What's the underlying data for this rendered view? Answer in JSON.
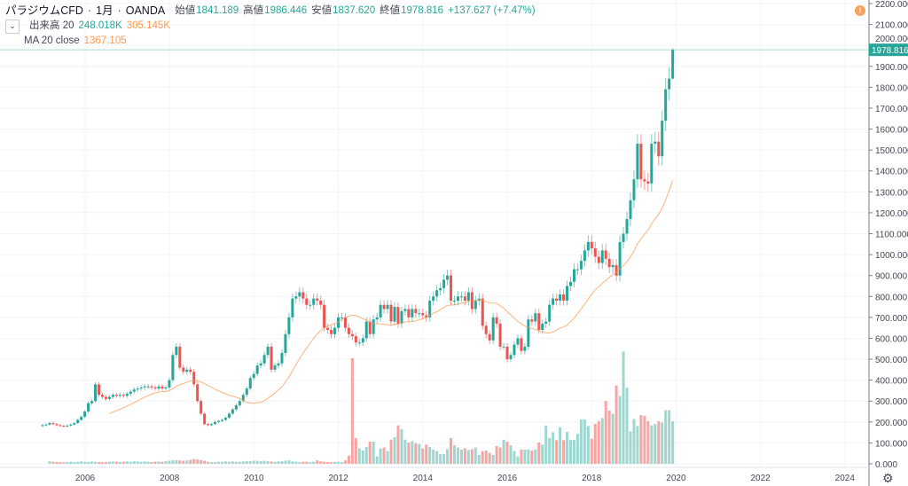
{
  "legend": {
    "symbol": "パラジウムCFD",
    "interval": "1月",
    "exchange": "OANDA",
    "open_label": "始値",
    "open": "1841.189",
    "high_label": "高値",
    "high": "1986.446",
    "low_label": "安値",
    "low": "1837.620",
    "close_label": "終値",
    "close": "1978.816",
    "change": "+137.627 (+7.47%)",
    "volume_label": "出来高 20",
    "volume_value": "248.018K",
    "volume_ma": "305.145K",
    "ma_label": "MA 20 close",
    "ma_value": "1367.105"
  },
  "price_label": "1978.816",
  "alert_icon": "!",
  "colors": {
    "up": "#26a69a",
    "down": "#ef5350",
    "ma": "#ff9850",
    "volume_up": "#9fd6d0",
    "volume_down": "#f5a6a4"
  },
  "chart_data": {
    "type": "candlestick",
    "start": "2005-01",
    "interval": "1M",
    "ylim": [
      0,
      2200
    ],
    "y_ticks": [
      "0.000",
      "100.000",
      "200.000",
      "300.000",
      "400.000",
      "500.000",
      "600.000",
      "700.000",
      "800.000",
      "900.000",
      "1000.000",
      "1100.000",
      "1200.000",
      "1300.000",
      "1400.000",
      "1500.000",
      "1600.000",
      "1700.000",
      "1800.000",
      "1900.000",
      "2000.000",
      "2100.000",
      "2200.000"
    ],
    "x_ticks": [
      "2006",
      "2008",
      "2010",
      "2012",
      "2014",
      "2016",
      "2018",
      "2020",
      "2022",
      "2024"
    ],
    "ma_period": 20,
    "last_bar": {
      "open": 1841.189,
      "high": 1986.446,
      "low": 1837.62,
      "close": 1978.816
    },
    "close": [
      185,
      188,
      195,
      190,
      185,
      182,
      180,
      183,
      188,
      195,
      210,
      225,
      250,
      290,
      300,
      380,
      330,
      320,
      310,
      320,
      330,
      325,
      330,
      325,
      335,
      345,
      355,
      360,
      365,
      370,
      370,
      365,
      360,
      370,
      360,
      365,
      400,
      520,
      560,
      460,
      440,
      450,
      440,
      380,
      300,
      240,
      190,
      185,
      190,
      200,
      205,
      210,
      220,
      240,
      260,
      280,
      300,
      330,
      360,
      410,
      430,
      470,
      480,
      520,
      560,
      450,
      470,
      480,
      530,
      620,
      700,
      790,
      800,
      820,
      790,
      760,
      760,
      790,
      780,
      760,
      650,
      640,
      620,
      650,
      700,
      700,
      650,
      620,
      610,
      580,
      580,
      600,
      680,
      620,
      690,
      700,
      760,
      740,
      760,
      680,
      750,
      670,
      730,
      740,
      700,
      740,
      720,
      720,
      710,
      700,
      780,
      800,
      830,
      840,
      880,
      900,
      780,
      780,
      800,
      800,
      780,
      820,
      740,
      780,
      790,
      660,
      620,
      590,
      700,
      670,
      560,
      560,
      500,
      520,
      570,
      600,
      540,
      560,
      690,
      680,
      720,
      640,
      670,
      680,
      760,
      790,
      780,
      810,
      780,
      850,
      870,
      930,
      930,
      970,
      1020,
      1060,
      1030,
      990,
      960,
      1020,
      980,
      940,
      950,
      900,
      1060,
      1100,
      1170,
      1260,
      1360,
      1530,
      1360,
      1350,
      1340,
      1530,
      1540,
      1470,
      1640,
      1790,
      1841.189,
      1978.816
    ],
    "volume_k": [
      0,
      0,
      15,
      12,
      10,
      10,
      8,
      10,
      12,
      10,
      12,
      15,
      12,
      10,
      14,
      12,
      10,
      8,
      10,
      12,
      14,
      12,
      10,
      12,
      14,
      12,
      15,
      14,
      12,
      14,
      12,
      10,
      12,
      14,
      12,
      15,
      18,
      20,
      22,
      20,
      18,
      20,
      24,
      28,
      26,
      22,
      18,
      12,
      10,
      10,
      12,
      12,
      14,
      12,
      14,
      12,
      12,
      14,
      16,
      16,
      18,
      18,
      16,
      18,
      16,
      14,
      12,
      14,
      16,
      18,
      20,
      14,
      12,
      10,
      12,
      12,
      10,
      12,
      20,
      14,
      12,
      10,
      10,
      12,
      12,
      10,
      20,
      48,
      616,
      150,
      89,
      77,
      98,
      129,
      129,
      43,
      89,
      95,
      74,
      141,
      155,
      224,
      203,
      141,
      124,
      132,
      120,
      115,
      89,
      112,
      98,
      83,
      74,
      57,
      57,
      86,
      150,
      108,
      95,
      83,
      90,
      80,
      85,
      95,
      52,
      74,
      77,
      64,
      52,
      103,
      95,
      141,
      129,
      108,
      74,
      43,
      83,
      83,
      84,
      77,
      84,
      124,
      112,
      224,
      150,
      184,
      138,
      213,
      138,
      186,
      139,
      139,
      175,
      258,
      258,
      220,
      146,
      232,
      249,
      267,
      366,
      310,
      292,
      456,
      396,
      654,
      444,
      189,
      261,
      220,
      284,
      279,
      249,
      224,
      232,
      249,
      241,
      313,
      313,
      248
    ]
  }
}
